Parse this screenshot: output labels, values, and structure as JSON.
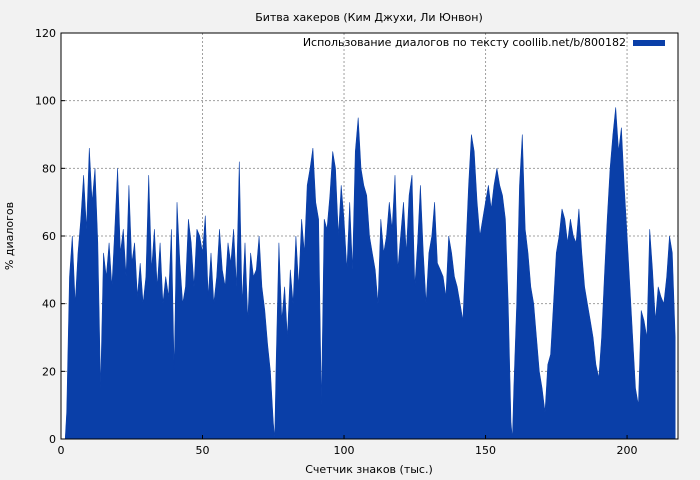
{
  "chart_data": {
    "type": "area",
    "title": "Битва хакеров (Ким Джухи, Ли Юнвон)",
    "xlabel": "Счетчик знаков (тыс.)",
    "ylabel": "% диалогов",
    "xlim": [
      0,
      218
    ],
    "ylim": [
      0,
      120
    ],
    "x_ticks": [
      0,
      50,
      100,
      150,
      200
    ],
    "y_ticks": [
      0,
      20,
      40,
      60,
      80,
      100,
      120
    ],
    "grid": true,
    "legend_position": "top-right",
    "series": [
      {
        "name": "Использование диалогов по тексту coollib.net/b/800182",
        "color": "#0a3fa8",
        "points": [
          [
            1.5,
            0
          ],
          [
            2,
            8
          ],
          [
            3,
            48
          ],
          [
            4,
            60
          ],
          [
            5,
            40
          ],
          [
            6,
            55
          ],
          [
            7,
            65
          ],
          [
            8,
            78
          ],
          [
            9,
            62
          ],
          [
            10,
            86
          ],
          [
            11,
            70
          ],
          [
            12,
            80
          ],
          [
            13,
            58
          ],
          [
            14,
            15
          ],
          [
            15,
            55
          ],
          [
            16,
            48
          ],
          [
            17,
            58
          ],
          [
            18,
            45
          ],
          [
            19,
            62
          ],
          [
            20,
            80
          ],
          [
            21,
            55
          ],
          [
            22,
            62
          ],
          [
            23,
            48
          ],
          [
            24,
            75
          ],
          [
            25,
            52
          ],
          [
            26,
            58
          ],
          [
            27,
            42
          ],
          [
            28,
            52
          ],
          [
            29,
            40
          ],
          [
            30,
            48
          ],
          [
            31,
            78
          ],
          [
            32,
            50
          ],
          [
            33,
            62
          ],
          [
            34,
            45
          ],
          [
            35,
            58
          ],
          [
            36,
            40
          ],
          [
            37,
            48
          ],
          [
            38,
            42
          ],
          [
            39,
            62
          ],
          [
            40,
            20
          ],
          [
            41,
            70
          ],
          [
            42,
            52
          ],
          [
            43,
            40
          ],
          [
            44,
            45
          ],
          [
            45,
            65
          ],
          [
            46,
            58
          ],
          [
            47,
            45
          ],
          [
            48,
            62
          ],
          [
            49,
            60
          ],
          [
            50,
            55
          ],
          [
            51,
            66
          ],
          [
            52,
            42
          ],
          [
            53,
            55
          ],
          [
            54,
            40
          ],
          [
            55,
            48
          ],
          [
            56,
            62
          ],
          [
            57,
            50
          ],
          [
            58,
            45
          ],
          [
            59,
            58
          ],
          [
            60,
            52
          ],
          [
            61,
            62
          ],
          [
            62,
            45
          ],
          [
            63,
            82
          ],
          [
            64,
            40
          ],
          [
            65,
            58
          ],
          [
            66,
            35
          ],
          [
            67,
            55
          ],
          [
            68,
            48
          ],
          [
            69,
            50
          ],
          [
            70,
            60
          ],
          [
            71,
            45
          ],
          [
            72,
            38
          ],
          [
            73,
            28
          ],
          [
            74,
            20
          ],
          [
            75,
            5
          ],
          [
            75.5,
            0
          ],
          [
            76,
            22
          ],
          [
            77,
            58
          ],
          [
            78,
            35
          ],
          [
            79,
            45
          ],
          [
            80,
            30
          ],
          [
            81,
            50
          ],
          [
            82,
            40
          ],
          [
            83,
            60
          ],
          [
            84,
            45
          ],
          [
            85,
            65
          ],
          [
            86,
            55
          ],
          [
            87,
            75
          ],
          [
            88,
            80
          ],
          [
            89,
            86
          ],
          [
            90,
            70
          ],
          [
            91,
            65
          ],
          [
            92,
            10
          ],
          [
            93,
            65
          ],
          [
            94,
            62
          ],
          [
            95,
            72
          ],
          [
            96,
            85
          ],
          [
            97,
            80
          ],
          [
            98,
            60
          ],
          [
            99,
            75
          ],
          [
            100,
            65
          ],
          [
            101,
            50
          ],
          [
            102,
            70
          ],
          [
            103,
            50
          ],
          [
            104,
            85
          ],
          [
            105,
            95
          ],
          [
            106,
            80
          ],
          [
            107,
            75
          ],
          [
            108,
            72
          ],
          [
            109,
            60
          ],
          [
            110,
            55
          ],
          [
            111,
            50
          ],
          [
            112,
            40
          ],
          [
            113,
            65
          ],
          [
            114,
            55
          ],
          [
            115,
            60
          ],
          [
            116,
            70
          ],
          [
            117,
            62
          ],
          [
            118,
            78
          ],
          [
            119,
            50
          ],
          [
            120,
            60
          ],
          [
            121,
            70
          ],
          [
            122,
            55
          ],
          [
            123,
            72
          ],
          [
            124,
            78
          ],
          [
            125,
            45
          ],
          [
            126,
            58
          ],
          [
            127,
            75
          ],
          [
            128,
            55
          ],
          [
            129,
            40
          ],
          [
            130,
            55
          ],
          [
            131,
            60
          ],
          [
            132,
            70
          ],
          [
            133,
            52
          ],
          [
            134,
            50
          ],
          [
            135,
            48
          ],
          [
            136,
            42
          ],
          [
            137,
            60
          ],
          [
            138,
            55
          ],
          [
            139,
            48
          ],
          [
            140,
            45
          ],
          [
            141,
            40
          ],
          [
            142,
            35
          ],
          [
            143,
            55
          ],
          [
            144,
            75
          ],
          [
            145,
            90
          ],
          [
            146,
            85
          ],
          [
            147,
            70
          ],
          [
            148,
            60
          ],
          [
            149,
            65
          ],
          [
            150,
            70
          ],
          [
            151,
            75
          ],
          [
            152,
            68
          ],
          [
            153,
            75
          ],
          [
            154,
            80
          ],
          [
            155,
            75
          ],
          [
            156,
            72
          ],
          [
            157,
            65
          ],
          [
            158,
            40
          ],
          [
            159,
            5
          ],
          [
            159.5,
            0
          ],
          [
            160,
            15
          ],
          [
            161,
            40
          ],
          [
            162,
            75
          ],
          [
            163,
            90
          ],
          [
            164,
            62
          ],
          [
            165,
            55
          ],
          [
            166,
            45
          ],
          [
            167,
            40
          ],
          [
            168,
            30
          ],
          [
            169,
            20
          ],
          [
            170,
            15
          ],
          [
            171,
            8
          ],
          [
            172,
            22
          ],
          [
            173,
            25
          ],
          [
            174,
            40
          ],
          [
            175,
            55
          ],
          [
            176,
            60
          ],
          [
            177,
            68
          ],
          [
            178,
            65
          ],
          [
            179,
            58
          ],
          [
            180,
            65
          ],
          [
            181,
            60
          ],
          [
            182,
            58
          ],
          [
            183,
            68
          ],
          [
            184,
            55
          ],
          [
            185,
            45
          ],
          [
            186,
            40
          ],
          [
            187,
            35
          ],
          [
            188,
            30
          ],
          [
            189,
            22
          ],
          [
            190,
            18
          ],
          [
            191,
            30
          ],
          [
            192,
            48
          ],
          [
            193,
            65
          ],
          [
            194,
            80
          ],
          [
            195,
            90
          ],
          [
            196,
            98
          ],
          [
            197,
            85
          ],
          [
            198,
            92
          ],
          [
            199,
            75
          ],
          [
            200,
            60
          ],
          [
            201,
            45
          ],
          [
            202,
            30
          ],
          [
            203,
            15
          ],
          [
            204,
            10
          ],
          [
            205,
            38
          ],
          [
            206,
            35
          ],
          [
            207,
            30
          ],
          [
            208,
            62
          ],
          [
            209,
            50
          ],
          [
            210,
            35
          ],
          [
            211,
            45
          ],
          [
            212,
            42
          ],
          [
            213,
            40
          ],
          [
            214,
            48
          ],
          [
            215,
            60
          ],
          [
            216,
            55
          ],
          [
            217,
            30
          ]
        ]
      }
    ]
  }
}
